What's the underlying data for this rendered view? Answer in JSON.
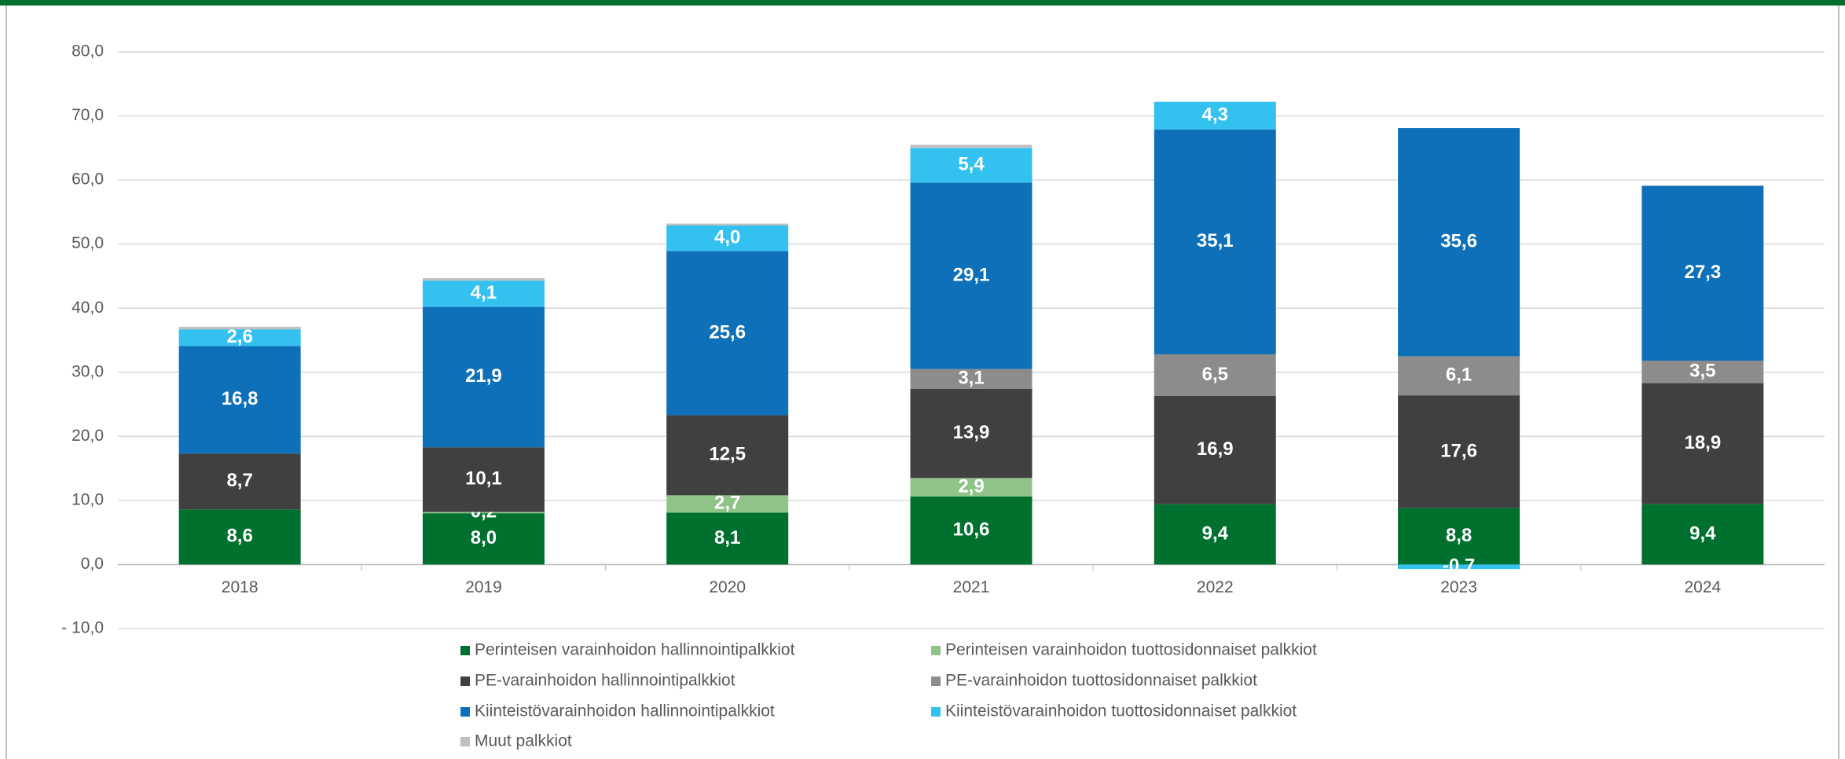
{
  "chart_data": {
    "type": "stacked_bar",
    "categories": [
      "2018",
      "2019",
      "2020",
      "2021",
      "2022",
      "2023",
      "2024"
    ],
    "series": [
      {
        "name": "Perinteisen varainhoidon hallinnointipalkkiot",
        "color": "#00702f",
        "values": [
          8.6,
          8.0,
          8.1,
          10.6,
          9.4,
          8.8,
          9.4
        ],
        "value_labels": [
          "8,6",
          "8,0",
          "8,1",
          "10,6",
          "9,4",
          "8,8",
          "9,4"
        ]
      },
      {
        "name": "Perinteisen varainhoidon tuottosidonnaiset palkkiot",
        "color": "#8fc388",
        "values": [
          0,
          0.2,
          2.7,
          2.9,
          0,
          0,
          0
        ],
        "value_labels": [
          null,
          "0,2",
          "2,7",
          "2,9",
          null,
          null,
          null
        ]
      },
      {
        "name": "PE-varainhoidon hallinnointipalkkiot",
        "color": "#404040",
        "values": [
          8.7,
          10.1,
          12.5,
          13.9,
          16.9,
          17.6,
          18.9
        ],
        "value_labels": [
          "8,7",
          "10,1",
          "12,5",
          "13,9",
          "16,9",
          "17,6",
          "18,9"
        ]
      },
      {
        "name": "PE-varainhoidon tuottosidonnaiset palkkiot",
        "color": "#8c8c8c",
        "values": [
          0,
          0,
          0,
          3.1,
          6.5,
          6.1,
          3.5
        ],
        "value_labels": [
          null,
          null,
          null,
          "3,1",
          "6,5",
          "6,1",
          "3,5"
        ]
      },
      {
        "name": "Kiinteistövarainhoidon hallinnointipalkkiot",
        "color": "#0e70b8",
        "values": [
          16.8,
          21.9,
          25.6,
          29.1,
          35.1,
          35.6,
          27.3
        ],
        "value_labels": [
          "16,8",
          "21,9",
          "25,6",
          "29,1",
          "35,1",
          "35,6",
          "27,3"
        ]
      },
      {
        "name": "Kiinteistövarainhoidon tuottosidonnaiset palkkiot",
        "color": "#33c1f0",
        "values": [
          2.6,
          4.1,
          4.0,
          5.4,
          4.3,
          -0.7,
          0
        ],
        "value_labels": [
          "2,6",
          "4,1",
          "4,0",
          "5,4",
          "4,3",
          "-0,7",
          null
        ]
      },
      {
        "name": "Muut palkkiot",
        "color": "#c0c0c0",
        "values": [
          0.4,
          0.4,
          0.3,
          0.5,
          0,
          0,
          0
        ]
      }
    ],
    "ylim": [
      -10,
      80
    ],
    "yticks": [
      {
        "value": -10,
        "label": "- 10,0"
      },
      {
        "value": 0,
        "label": "0,0"
      },
      {
        "value": 10,
        "label": "10,0"
      },
      {
        "value": 20,
        "label": "20,0"
      },
      {
        "value": 30,
        "label": "30,0"
      },
      {
        "value": 40,
        "label": "40,0"
      },
      {
        "value": 50,
        "label": "50,0"
      },
      {
        "value": 60,
        "label": "60,0"
      },
      {
        "value": 70,
        "label": "70,0"
      },
      {
        "value": 80,
        "label": "80,0"
      }
    ],
    "grid": true,
    "legend": "bottom"
  }
}
